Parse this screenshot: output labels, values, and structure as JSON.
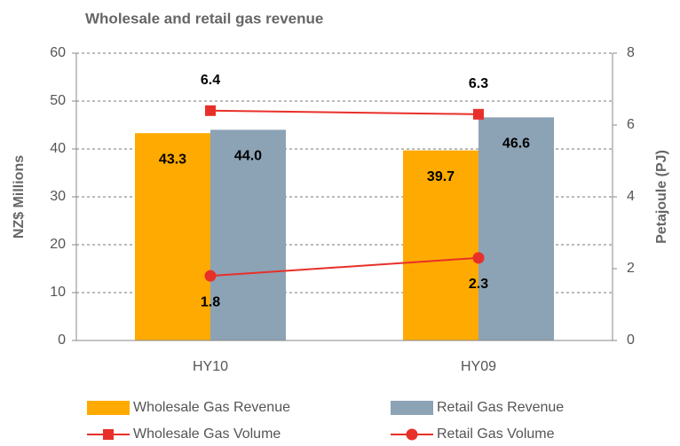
{
  "chart_data": {
    "type": "bar",
    "title": "Wholesale and retail gas revenue",
    "y_label": "NZ$ Millions",
    "y2_label": "Petajoule (PJ)",
    "categories": [
      "HY10",
      "HY09"
    ],
    "series": [
      {
        "name": "Wholesale Gas Revenue",
        "type": "bar",
        "color": "#ffaa00",
        "values": [
          43.3,
          39.7
        ],
        "value_labels": [
          "43.3",
          "39.7"
        ]
      },
      {
        "name": "Retail Gas Revenue",
        "type": "bar",
        "color": "#8ca2b5",
        "values": [
          44.0,
          46.6
        ],
        "value_labels": [
          "44.0",
          "46.6"
        ]
      },
      {
        "name": "Wholesale Gas Volume",
        "type": "line",
        "marker": "square",
        "axis": "y2",
        "color": "#e8302a",
        "values": [
          6.4,
          6.3
        ]
      },
      {
        "name": "Retail Gas Volume",
        "type": "line",
        "marker": "circle",
        "axis": "y2",
        "color": "#e8302a",
        "values": [
          1.8,
          2.3
        ]
      }
    ],
    "ylim": [
      0,
      60
    ],
    "yticks": [
      0,
      10,
      20,
      30,
      40,
      50,
      60
    ],
    "y2lim": [
      0,
      8
    ],
    "y2ticks": [
      0,
      2,
      4,
      6,
      8
    ],
    "grid": true,
    "legend": "bottom"
  }
}
